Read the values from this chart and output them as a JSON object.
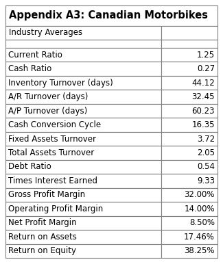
{
  "title": "Appendix A3: Canadian Motorbikes",
  "subtitle": "Industry Averages",
  "rows": [
    [
      "Current Ratio",
      "1.25"
    ],
    [
      "Cash Ratio",
      "0.27"
    ],
    [
      "Inventory Turnover (days)",
      "44.12"
    ],
    [
      "A/R Turnover (days)",
      "32.45"
    ],
    [
      "A/P Turnover (days)",
      "60.23"
    ],
    [
      "Cash Conversion Cycle",
      "16.35"
    ],
    [
      "Fixed Assets Turnover",
      "3.72"
    ],
    [
      "Total Assets Turnover",
      "2.05"
    ],
    [
      "Debt Ratio",
      "0.54"
    ],
    [
      "Times Interest Earned",
      "9.33"
    ],
    [
      "Gross Profit Margin",
      "32.00%"
    ],
    [
      "Operating Profit Margin",
      "14.00%"
    ],
    [
      "Net Profit Margin",
      "8.50%"
    ],
    [
      "Return on Assets",
      "17.46%"
    ],
    [
      "Return on Equity",
      "38.25%"
    ]
  ],
  "bg_color": "#ffffff",
  "border_color": "#7f7f7f",
  "title_fontsize": 10.5,
  "subtitle_fontsize": 8.5,
  "row_fontsize": 8.5,
  "col_split": 0.735,
  "fig_width": 3.25,
  "fig_height": 3.83,
  "dpi": 100
}
